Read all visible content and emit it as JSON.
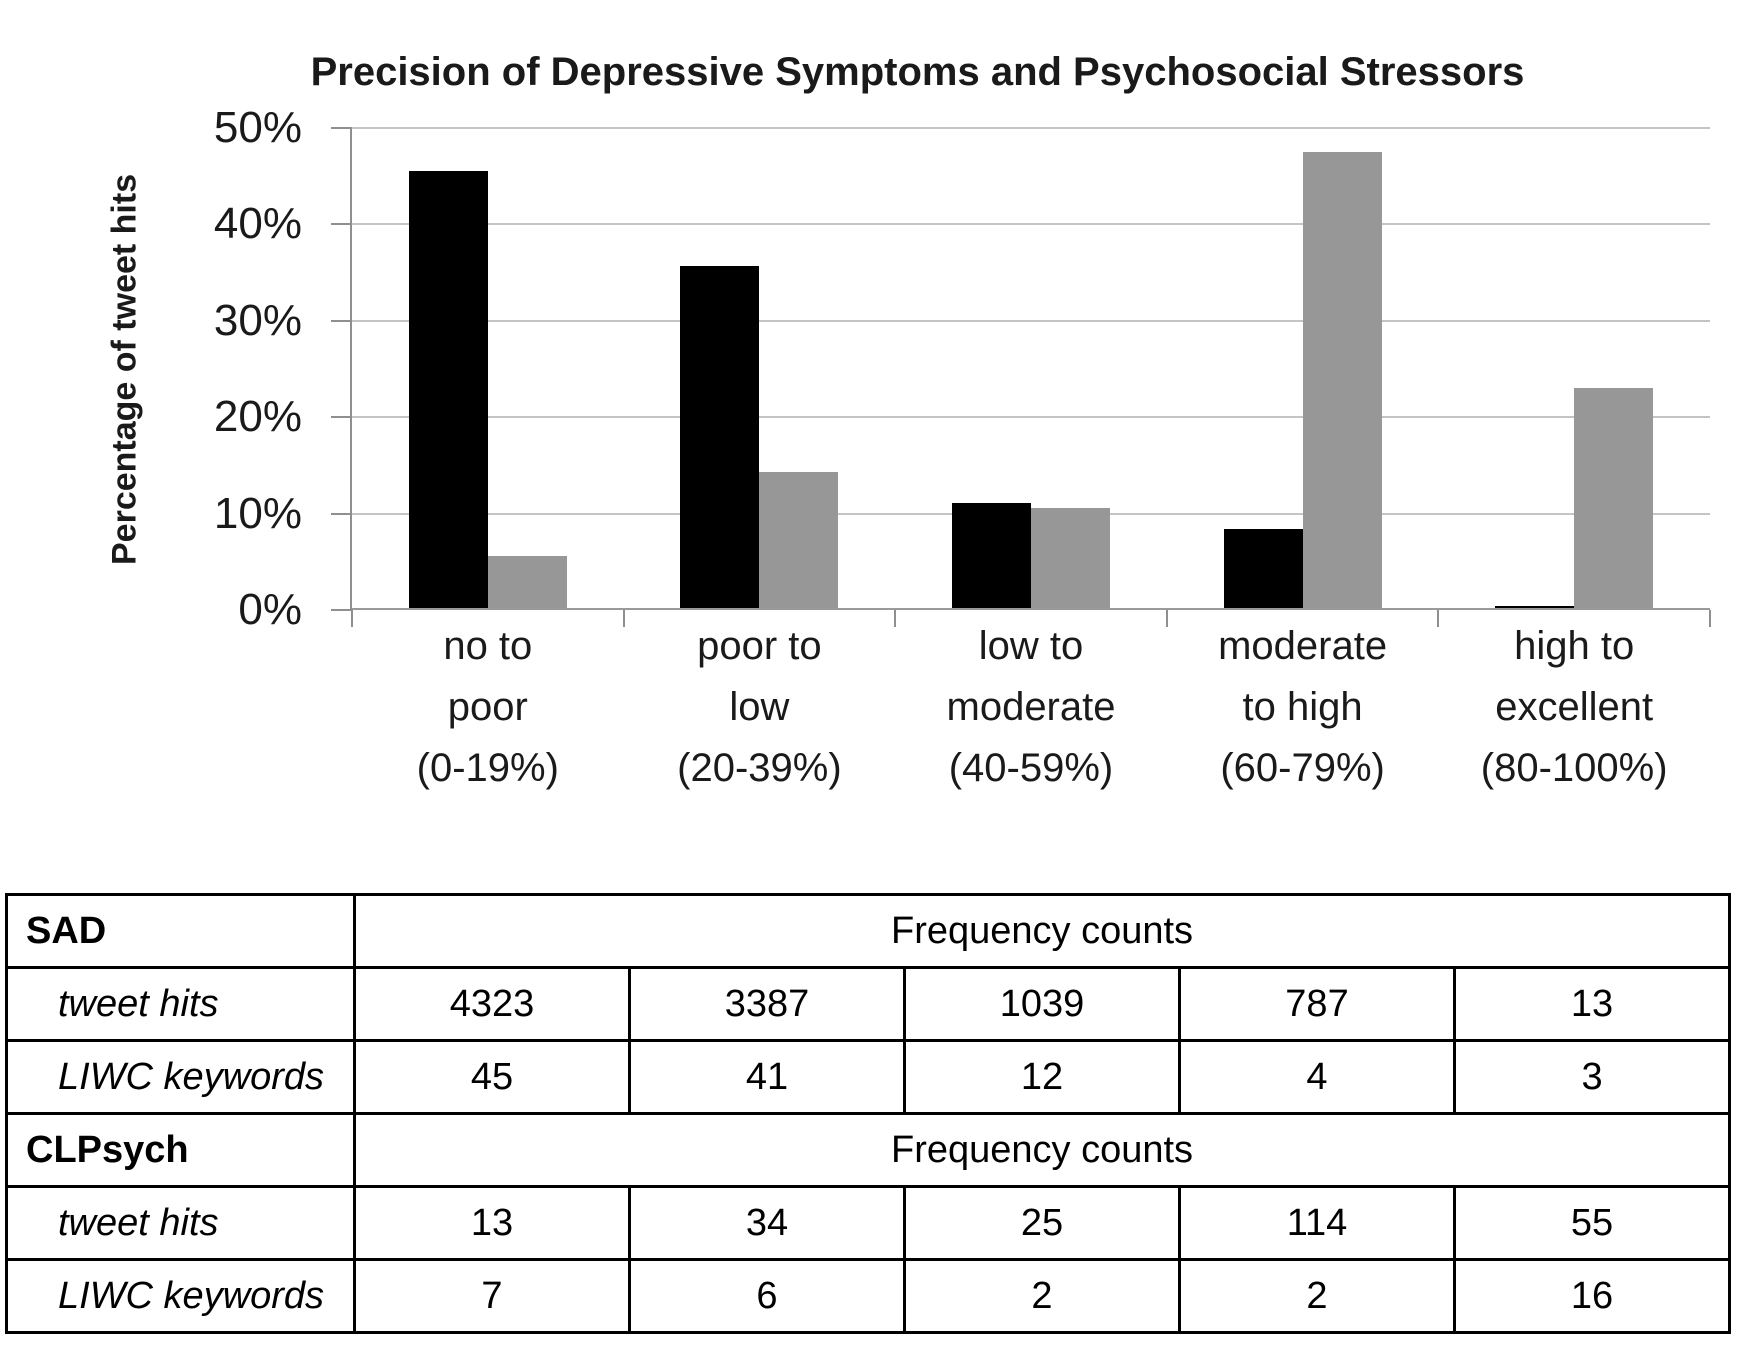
{
  "chart_data": {
    "type": "bar",
    "title": "Precision of Depressive Symptoms and Psychosocial Stressors",
    "xlabel": "",
    "ylabel": "Percentage of tweet hits",
    "ylim": [
      0,
      50
    ],
    "ytick_step": 10,
    "ytick_labels": [
      "0%",
      "10%",
      "20%",
      "30%",
      "40%",
      "50%"
    ],
    "grid": true,
    "legend_position": "none",
    "categories": [
      "no to poor (0-19%)",
      "poor to low (20-39%)",
      "low to moderate (40-59%)",
      "moderate to high (60-79%)",
      "high to excellent (80-100%)"
    ],
    "category_label_lines": [
      [
        "no to",
        "poor",
        "(0-19%)"
      ],
      [
        "poor to",
        "low",
        "(20-39%)"
      ],
      [
        "low to",
        "moderate",
        "(40-59%)"
      ],
      [
        "moderate",
        "to high",
        "(60-79%)"
      ],
      [
        "high to",
        "excellent",
        "(80-100%)"
      ]
    ],
    "series": [
      {
        "name": "SAD",
        "color": "#000000",
        "values": [
          45.3,
          35.5,
          10.9,
          8.2,
          0.15
        ]
      },
      {
        "name": "CLPsych",
        "color": "#979797",
        "values": [
          5.4,
          14.1,
          10.4,
          47.3,
          22.8
        ]
      }
    ],
    "grid_color": "#c4c4c4",
    "axis_color": "#8f8f8f"
  },
  "table": {
    "sections": [
      {
        "header": "SAD",
        "span_label": "Frequency counts",
        "rows": [
          {
            "label": "tweet hits",
            "values": [
              "4323",
              "3387",
              "1039",
              "787",
              "13"
            ]
          },
          {
            "label": "LIWC keywords",
            "values": [
              "45",
              "41",
              "12",
              "4",
              "3"
            ]
          }
        ]
      },
      {
        "header": "CLPsych",
        "span_label": "Frequency counts",
        "rows": [
          {
            "label": "tweet hits",
            "values": [
              "13",
              "34",
              "25",
              "114",
              "55"
            ]
          },
          {
            "label": "LIWC keywords",
            "values": [
              "7",
              "6",
              "2",
              "2",
              "16"
            ]
          }
        ]
      }
    ]
  }
}
